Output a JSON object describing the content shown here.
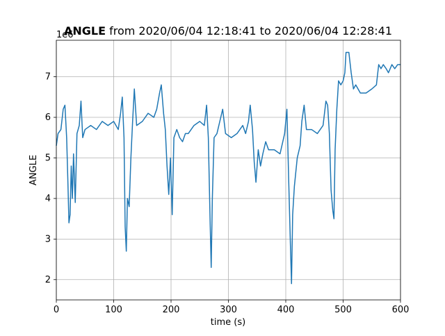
{
  "chart_data": {
    "type": "line",
    "title_bold": "ANGLE",
    "title": "from 2020/06/04 12:18:41 to 2020/06/04 12:28:41",
    "offset_label": "1e6",
    "xlabel": "time (s)",
    "ylabel": "ANGLE",
    "x": [
      0,
      3,
      8,
      12,
      15,
      18,
      20,
      22,
      24,
      26,
      28,
      30,
      33,
      36,
      40,
      43,
      46,
      50,
      60,
      70,
      80,
      90,
      100,
      108,
      112,
      115,
      118,
      120,
      122,
      124,
      127,
      130,
      133,
      136,
      140,
      150,
      160,
      170,
      175,
      180,
      183,
      187,
      190,
      193,
      196,
      199,
      202,
      205,
      210,
      215,
      220,
      225,
      230,
      240,
      250,
      258,
      262,
      265,
      268,
      270,
      272,
      275,
      280,
      285,
      290,
      295,
      305,
      315,
      325,
      330,
      335,
      338,
      342,
      345,
      348,
      352,
      356,
      360,
      365,
      370,
      380,
      390,
      398,
      402,
      405,
      408,
      410,
      412,
      415,
      420,
      425,
      428,
      432,
      436,
      445,
      455,
      465,
      470,
      473,
      476,
      479,
      482,
      484,
      486,
      489,
      492,
      496,
      500,
      503,
      505,
      510,
      514,
      518,
      522,
      530,
      540,
      550,
      558,
      562,
      566,
      570,
      575,
      579,
      585,
      590,
      595,
      600
    ],
    "series": [
      {
        "name": "ANGLE",
        "color": "#1f77b4",
        "values": [
          5.3,
          5.6,
          5.7,
          6.2,
          6.3,
          5.5,
          4.5,
          3.4,
          3.6,
          4.8,
          4.0,
          5.1,
          3.9,
          5.6,
          5.8,
          6.4,
          5.5,
          5.7,
          5.8,
          5.7,
          5.9,
          5.8,
          5.9,
          5.7,
          6.1,
          6.5,
          5.5,
          3.3,
          2.7,
          4.0,
          3.8,
          5.0,
          5.9,
          6.7,
          5.8,
          5.9,
          6.1,
          6.0,
          6.2,
          6.6,
          6.8,
          6.1,
          5.7,
          4.8,
          4.1,
          5.0,
          3.6,
          5.5,
          5.7,
          5.5,
          5.4,
          5.6,
          5.6,
          5.8,
          5.9,
          5.8,
          6.3,
          5.5,
          3.5,
          2.3,
          4.0,
          5.5,
          5.6,
          5.9,
          6.2,
          5.6,
          5.5,
          5.6,
          5.8,
          5.6,
          5.9,
          6.3,
          5.7,
          4.9,
          4.4,
          5.2,
          4.8,
          5.1,
          5.4,
          5.2,
          5.2,
          5.1,
          5.6,
          6.2,
          4.5,
          2.9,
          1.9,
          3.6,
          4.3,
          5.0,
          5.3,
          5.9,
          6.3,
          5.7,
          5.7,
          5.6,
          5.8,
          6.4,
          6.3,
          5.6,
          4.2,
          3.7,
          3.5,
          5.2,
          6.2,
          6.9,
          6.8,
          6.9,
          7.1,
          7.6,
          7.6,
          7.1,
          6.7,
          6.8,
          6.6,
          6.6,
          6.7,
          6.8,
          7.3,
          7.2,
          7.3,
          7.2,
          7.1,
          7.3,
          7.2,
          7.3,
          7.3
        ]
      }
    ],
    "xlim": [
      0,
      600
    ],
    "xticks": [
      0,
      100,
      200,
      300,
      400,
      500,
      600
    ],
    "ylim": [
      1.5,
      7.9
    ],
    "yticks": [
      2,
      3,
      4,
      5,
      6,
      7
    ],
    "grid": true
  }
}
